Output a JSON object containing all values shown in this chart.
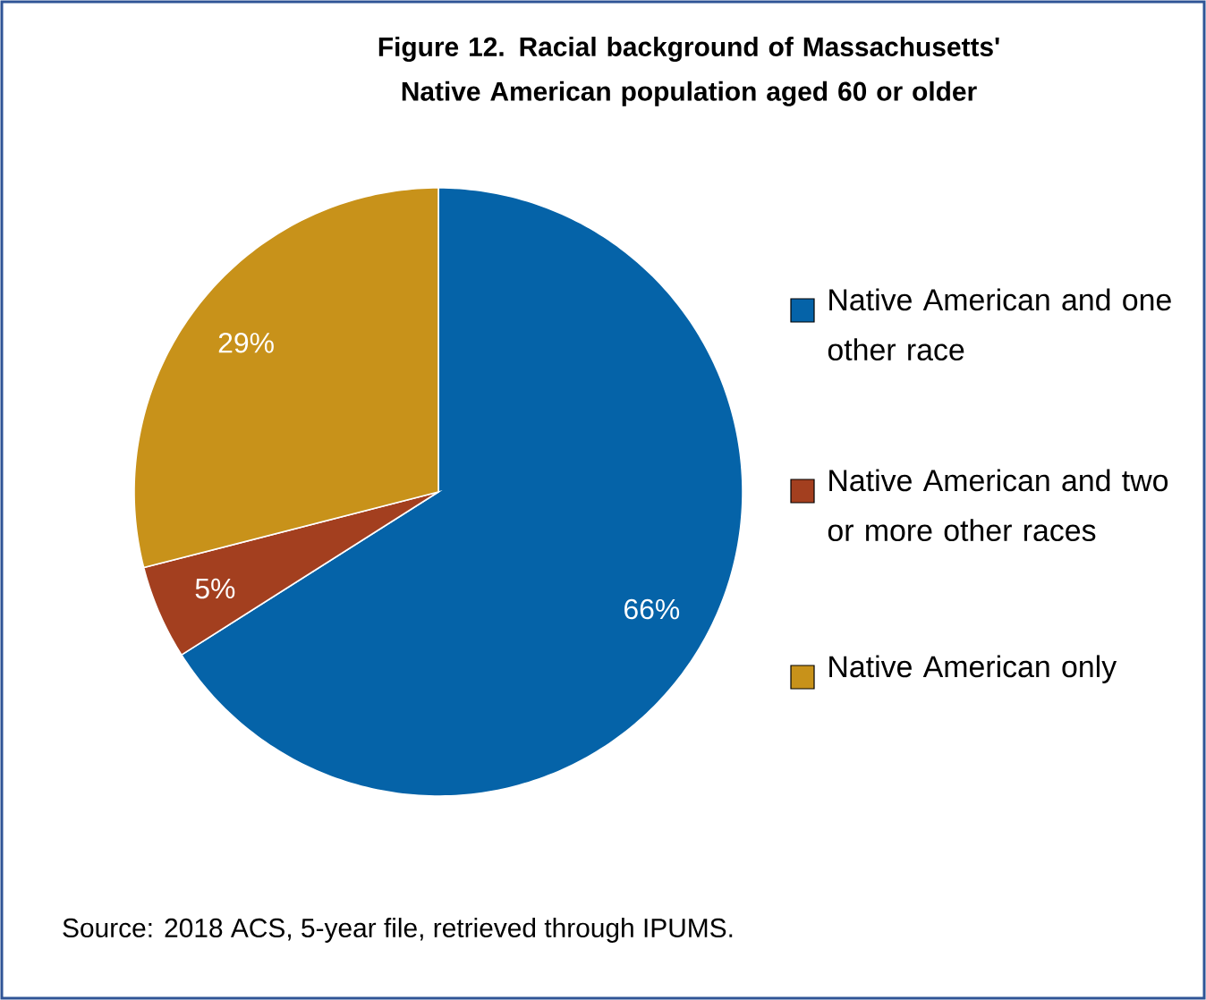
{
  "chart_data": {
    "type": "pie",
    "title": "Figure 12. Racial background of Massachusetts' Native American population aged 60 or older",
    "categories": [
      "Native American and one other race",
      "Native American and two or more other races",
      "Native American only"
    ],
    "values": [
      66,
      5,
      29
    ],
    "colors": [
      "#0563a8",
      "#a33f1f",
      "#c8921a"
    ],
    "value_labels": [
      "66%",
      "5%",
      "29%"
    ],
    "legend": "right",
    "annotations": [
      "Source: 2018 ACS, 5-year file, retrieved through IPUMS."
    ]
  }
}
